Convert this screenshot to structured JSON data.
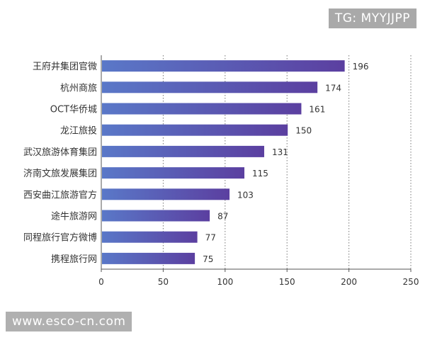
{
  "watermarks": {
    "top": "TG: MYYJJPP",
    "bottom": "www.esco-cn.com"
  },
  "colors": {
    "bar_start": "#5a78c8",
    "bar_end": "#5b3fa0",
    "axis": "#555555",
    "grid": "#777777",
    "text": "#333333"
  },
  "chart_data": {
    "type": "bar",
    "orientation": "horizontal",
    "title": "",
    "xlabel": "",
    "ylabel": "",
    "categories": [
      "王府井集团官微",
      "杭州商旅",
      "OCT华侨城",
      "龙江旅投",
      "武汉旅游体育集团",
      "济南文旅发展集团",
      "西安曲江旅游官方",
      "途牛旅游网",
      "同程旅行官方微博",
      "携程旅行网"
    ],
    "values": [
      196,
      174,
      161,
      150,
      131,
      115,
      103,
      87,
      77,
      75
    ],
    "xlim": [
      0,
      250
    ],
    "xticks": [
      0,
      50,
      100,
      150,
      200,
      250
    ],
    "grid": "vertical-dotted",
    "data_labels": true
  }
}
